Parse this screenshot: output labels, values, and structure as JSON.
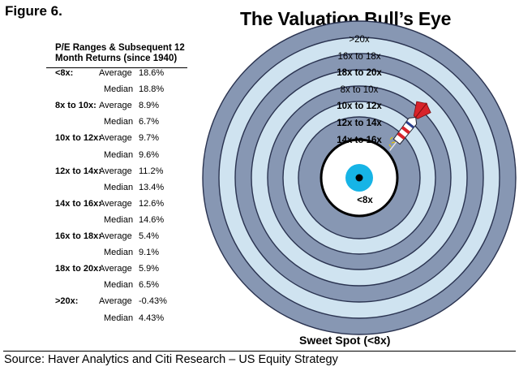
{
  "figure_label": "Figure 6.",
  "title": "The Valuation Bull’s Eye",
  "table": {
    "header_line1": "P/E Ranges & Subsequent 12",
    "header_line2": "Month Returns (since 1940)",
    "rows": [
      {
        "range": "<8x:",
        "avg_label": "Average",
        "avg": "18.6%",
        "med_label": "Median",
        "med": "18.8%"
      },
      {
        "range": "8x to 10x:",
        "avg_label": "Average",
        "avg": "8.9%",
        "med_label": "Median",
        "med": "6.7%"
      },
      {
        "range": "10x to 12x:",
        "avg_label": "Average",
        "avg": "9.7%",
        "med_label": "Median",
        "med": "9.6%"
      },
      {
        "range": "12x to 14x:",
        "avg_label": "Average",
        "avg": "11.2%",
        "med_label": "Median",
        "med": "13.4%"
      },
      {
        "range": "14x to 16x:",
        "avg_label": "Average",
        "avg": "12.6%",
        "med_label": "Median",
        "med": "14.6%"
      },
      {
        "range": "16x to 18x:",
        "avg_label": "Average",
        "avg": "5.4%",
        "med_label": "Median",
        "med": "9.1%"
      },
      {
        "range": "18x to 20x:",
        "avg_label": "Average",
        "avg": "5.9%",
        "med_label": "Median",
        "med": "6.5%"
      },
      {
        "range": ">20x:",
        "avg_label": "Average",
        "avg": "-0.43%",
        "med_label": "Median",
        "med": "4.43%"
      }
    ]
  },
  "chart_data": {
    "type": "bullseye",
    "title": "The Valuation Bull’s Eye",
    "rings_outer_to_inner": [
      ">20x",
      "16x to 18x",
      "18x to 20x",
      "8x to 10x",
      "10x to 12x",
      "12x to 14x",
      "14x to 16x",
      "<8x"
    ],
    "bold_rings": [
      "18x to 20x",
      "10x to 12x",
      "12x to 14x",
      "14x to 16x",
      "<8x"
    ],
    "target_label": "<8x",
    "caption": "Sweet Spot (<8x)",
    "colors": {
      "light_ring": "#cfe3f0",
      "dark_ring": "#8797b3",
      "outline": "#2a3350",
      "bull": "#16b4e6",
      "center_ring": "#ffffff",
      "dart_red": "#d8232a"
    }
  },
  "source": "Source: Haver Analytics and Citi Research – US Equity Strategy"
}
